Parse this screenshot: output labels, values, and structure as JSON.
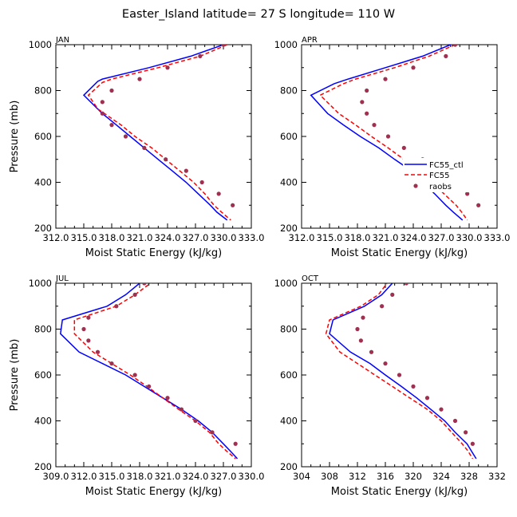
{
  "title": "Easter_Island  latitude= 27 S longitude= 110 W",
  "colors": {
    "ctl": "#0000ff",
    "fc55": "#ff0000",
    "obs": "#a03050",
    "axis": "#000000"
  },
  "legend": {
    "entries": [
      "FC55_ctl",
      "FC55",
      "raobs"
    ]
  },
  "chart_data": [
    {
      "type": "line",
      "panel_title": "JAN",
      "xlabel": "Moist Static Energy (kJ/kg)",
      "ylabel": "Pressure (mb)",
      "xlim": [
        312.0,
        333.0
      ],
      "ylim": [
        1000,
        200
      ],
      "x_ticks": [
        312,
        315,
        318,
        321,
        324,
        327,
        330,
        333
      ],
      "x_tick_labels": [
        "312.0",
        "315.0",
        "318.0",
        "321.0",
        "324.0",
        "327.0",
        "330.0",
        "333.0"
      ],
      "y_ticks": [
        200,
        400,
        600,
        800,
        1000
      ],
      "y_tick_labels": [
        "200",
        "400",
        "600",
        "800",
        "1000"
      ],
      "series": [
        {
          "name": "FC55_ctl",
          "style": "solid",
          "pressure": [
            1000,
            950,
            900,
            850,
            840,
            780,
            700,
            650,
            600,
            550,
            500,
            450,
            400,
            350,
            300,
            270,
            235
          ],
          "values": [
            330.0,
            326.5,
            322.0,
            317.0,
            316.5,
            315.0,
            317.0,
            318.5,
            320.0,
            321.5,
            323.0,
            324.5,
            326.0,
            327.3,
            328.6,
            329.3,
            330.4
          ]
        },
        {
          "name": "FC55",
          "style": "dashed",
          "pressure": [
            1010,
            950,
            900,
            850,
            835,
            780,
            720,
            650,
            600,
            550,
            500,
            450,
            400,
            350,
            300,
            270,
            235
          ],
          "values": [
            331.0,
            327.5,
            323.0,
            318.0,
            317.0,
            315.5,
            316.5,
            319.0,
            320.5,
            322.3,
            323.8,
            325.3,
            326.8,
            328.0,
            329.0,
            329.8,
            330.8
          ]
        },
        {
          "name": "raobs",
          "style": "markers",
          "pressure": [
            1000,
            950,
            900,
            850,
            800,
            750,
            700,
            650,
            600,
            550,
            500,
            450,
            400,
            350,
            300
          ],
          "values": [
            330.0,
            327.5,
            324.0,
            321.0,
            318.0,
            317.0,
            317.0,
            318.0,
            319.5,
            321.5,
            323.8,
            326.0,
            327.7,
            329.5,
            331.0
          ]
        }
      ]
    },
    {
      "type": "line",
      "panel_title": "APR",
      "xlabel": "Moist Static Energy (kJ/kg)",
      "ylabel": "",
      "xlim": [
        312.0,
        333.0
      ],
      "ylim": [
        1000,
        200
      ],
      "x_ticks": [
        312,
        315,
        318,
        321,
        324,
        327,
        330,
        333
      ],
      "x_tick_labels": [
        "312.0",
        "315.0",
        "318.0",
        "321.0",
        "324.0",
        "327.0",
        "330.0",
        "333.0"
      ],
      "y_ticks": [
        200,
        400,
        600,
        800,
        1000
      ],
      "y_tick_labels": [
        "200",
        "400",
        "600",
        "800",
        "1000"
      ],
      "series": [
        {
          "name": "FC55_ctl",
          "style": "solid",
          "pressure": [
            1000,
            950,
            900,
            850,
            830,
            780,
            700,
            650,
            600,
            550,
            500,
            450,
            400,
            350,
            300,
            270,
            235
          ],
          "values": [
            328.0,
            325.0,
            321.0,
            317.0,
            315.5,
            313.0,
            314.8,
            316.5,
            318.3,
            320.3,
            322.0,
            323.8,
            325.0,
            326.3,
            327.5,
            328.3,
            329.3
          ]
        },
        {
          "name": "FC55",
          "style": "dashed",
          "pressure": [
            1000,
            950,
            900,
            850,
            830,
            780,
            700,
            650,
            600,
            550,
            500,
            450,
            400,
            350,
            300,
            270,
            235
          ],
          "values": [
            328.5,
            325.7,
            322.0,
            317.8,
            316.5,
            314.0,
            316.0,
            317.8,
            319.5,
            321.3,
            323.0,
            324.8,
            326.0,
            327.3,
            328.6,
            329.2,
            329.8
          ]
        },
        {
          "name": "raobs",
          "style": "markers",
          "pressure": [
            1000,
            950,
            900,
            850,
            800,
            750,
            700,
            650,
            600,
            550,
            500,
            450,
            400,
            350,
            300
          ],
          "values": [
            328.5,
            327.5,
            324.0,
            321.0,
            319.0,
            318.5,
            319.0,
            319.8,
            321.3,
            323.0,
            325.0,
            326.8,
            328.3,
            329.8,
            331.0
          ]
        }
      ]
    },
    {
      "type": "line",
      "panel_title": "JUL",
      "xlabel": "Moist Static Energy (kJ/kg)",
      "ylabel": "Pressure (mb)",
      "xlim": [
        309.0,
        330.0
      ],
      "ylim": [
        1000,
        200
      ],
      "x_ticks": [
        309,
        312,
        315,
        318,
        321,
        324,
        327,
        330
      ],
      "x_tick_labels": [
        "309.0",
        "312.0",
        "315.0",
        "318.0",
        "321.0",
        "324.0",
        "327.0",
        "330.0"
      ],
      "y_ticks": [
        200,
        400,
        600,
        800,
        1000
      ],
      "y_tick_labels": [
        "200",
        "400",
        "600",
        "800",
        "1000"
      ],
      "series": [
        {
          "name": "FC55_ctl",
          "style": "solid",
          "pressure": [
            1000,
            950,
            900,
            840,
            780,
            700,
            650,
            600,
            550,
            500,
            450,
            400,
            350,
            300,
            270,
            235
          ],
          "values": [
            318.0,
            316.5,
            314.5,
            309.7,
            309.5,
            311.5,
            314.0,
            316.5,
            318.5,
            320.5,
            322.5,
            324.3,
            325.8,
            327.0,
            327.7,
            328.5
          ]
        },
        {
          "name": "FC55",
          "style": "dashed",
          "pressure": [
            1010,
            950,
            900,
            840,
            780,
            700,
            650,
            600,
            550,
            500,
            450,
            400,
            350,
            300,
            270,
            235
          ],
          "values": [
            319.5,
            317.5,
            315.5,
            311.0,
            311.0,
            313.0,
            315.0,
            317.0,
            318.8,
            320.5,
            322.2,
            324.0,
            325.5,
            326.5,
            327.3,
            328.3
          ]
        },
        {
          "name": "raobs",
          "style": "markers",
          "pressure": [
            1000,
            950,
            900,
            850,
            800,
            750,
            700,
            650,
            600,
            550,
            500,
            450,
            400,
            350,
            300
          ],
          "values": [
            318.5,
            317.5,
            315.5,
            312.5,
            312.0,
            312.5,
            313.5,
            315.0,
            317.5,
            319.0,
            321.0,
            322.5,
            324.0,
            325.8,
            328.3
          ]
        }
      ]
    },
    {
      "type": "line",
      "panel_title": "OCT",
      "xlabel": "Moist Static Energy (kJ/kg)",
      "ylabel": "",
      "xlim": [
        304,
        332
      ],
      "ylim": [
        1000,
        200
      ],
      "x_ticks": [
        304,
        308,
        312,
        316,
        320,
        324,
        328,
        332
      ],
      "x_tick_labels": [
        "304",
        "308",
        "312",
        "316",
        "320",
        "324",
        "328",
        "332"
      ],
      "y_ticks": [
        200,
        400,
        600,
        800,
        1000
      ],
      "y_tick_labels": [
        "200",
        "400",
        "600",
        "800",
        "1000"
      ],
      "series": [
        {
          "name": "FC55_ctl",
          "style": "solid",
          "pressure": [
            1000,
            950,
            900,
            840,
            780,
            700,
            650,
            600,
            550,
            500,
            450,
            400,
            350,
            300,
            270,
            235
          ],
          "values": [
            317.0,
            315.5,
            313.0,
            308.5,
            308.0,
            311.0,
            313.8,
            316.0,
            318.3,
            320.5,
            322.5,
            324.5,
            326.0,
            327.7,
            328.3,
            329.0
          ]
        },
        {
          "name": "FC55",
          "style": "dashed",
          "pressure": [
            1010,
            950,
            900,
            840,
            780,
            700,
            650,
            600,
            550,
            500,
            450,
            400,
            350,
            300,
            270,
            235
          ],
          "values": [
            316.5,
            315.0,
            312.5,
            308.0,
            307.5,
            309.5,
            312.0,
            314.5,
            317.0,
            319.5,
            322.0,
            324.0,
            325.5,
            327.0,
            327.8,
            328.5
          ]
        },
        {
          "name": "raobs",
          "style": "markers",
          "pressure": [
            1000,
            950,
            900,
            850,
            800,
            750,
            700,
            650,
            600,
            550,
            500,
            450,
            400,
            350,
            300
          ],
          "values": [
            319.0,
            317.0,
            315.5,
            312.8,
            312.0,
            312.5,
            314.0,
            316.0,
            318.0,
            320.0,
            322.0,
            324.0,
            326.0,
            327.5,
            328.5
          ]
        }
      ]
    }
  ]
}
